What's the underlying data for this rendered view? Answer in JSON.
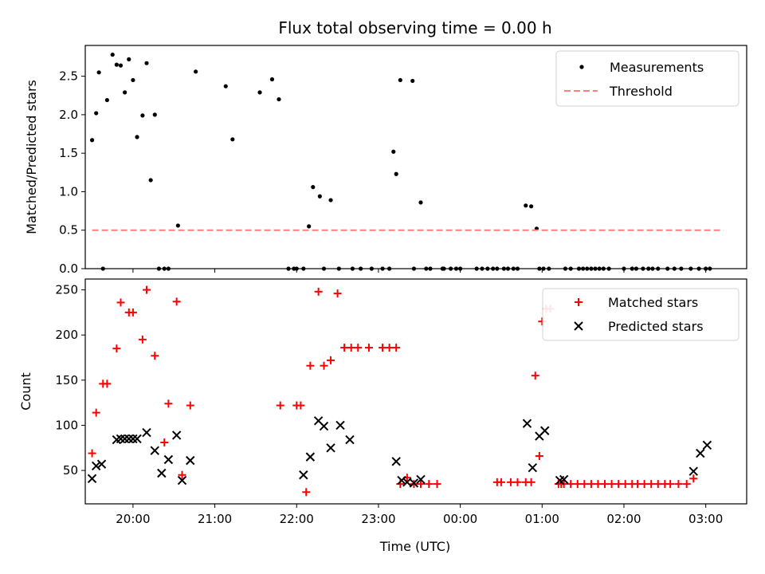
{
  "chart_data": [
    {
      "type": "scatter",
      "title": "Flux total observing time = 0.00 h",
      "xlabel": "",
      "ylabel": "Matched/Predicted stars",
      "xlim": [
        "19:25",
        "03:30"
      ],
      "ylim": [
        0,
        2.9
      ],
      "yticks": [
        0.0,
        0.5,
        1.0,
        1.5,
        2.0,
        2.5
      ],
      "ytick_labels": [
        "0.0",
        "0.5",
        "1.0",
        "1.5",
        "2.0",
        "2.5"
      ],
      "xticks": [
        "20:00",
        "21:00",
        "22:00",
        "23:00",
        "00:00",
        "01:00",
        "02:00",
        "03:00"
      ],
      "xtick_labels_visible": false,
      "legend_position": "top-right",
      "series": [
        {
          "name": "Measurements",
          "marker": "dot",
          "color": "#000000",
          "x": [
            "19:30",
            "19:33",
            "19:35",
            "19:38",
            "19:41",
            "19:45",
            "19:48",
            "19:51",
            "19:54",
            "19:57",
            "20:00",
            "20:03",
            "20:07",
            "20:10",
            "20:13",
            "20:16",
            "20:19",
            "20:23",
            "20:26",
            "20:33",
            "20:46",
            "21:08",
            "21:13",
            "21:33",
            "21:42",
            "21:47",
            "21:54",
            "21:58",
            "22:00",
            "22:05",
            "22:09",
            "22:12",
            "22:17",
            "22:20",
            "22:25",
            "22:31",
            "22:41",
            "22:47",
            "22:55",
            "23:03",
            "23:08",
            "23:11",
            "23:13",
            "23:16",
            "23:25",
            "23:26",
            "23:31",
            "23:35",
            "23:38",
            "23:47",
            "23:48",
            "23:53",
            "23:57",
            "00:00",
            "00:12",
            "00:16",
            "00:20",
            "00:24",
            "00:27",
            "00:32",
            "00:35",
            "00:39",
            "00:42",
            "00:48",
            "00:52",
            "00:56",
            "00:58",
            "01:01",
            "01:05",
            "01:17",
            "01:21",
            "01:27",
            "01:30",
            "01:33",
            "01:36",
            "01:39",
            "01:42",
            "01:45",
            "01:49",
            "02:00",
            "02:06",
            "02:09",
            "02:14",
            "02:18",
            "02:21",
            "02:25",
            "02:32",
            "02:37",
            "02:42",
            "02:49",
            "02:55",
            "03:00",
            "03:03"
          ],
          "y": [
            1.67,
            2.02,
            2.55,
            0.0,
            2.19,
            2.78,
            2.65,
            2.64,
            2.29,
            2.72,
            2.45,
            1.71,
            1.99,
            2.67,
            1.15,
            2.0,
            0.0,
            0.0,
            0.0,
            0.56,
            2.56,
            2.37,
            1.68,
            2.29,
            2.46,
            2.2,
            0.0,
            0.0,
            0.0,
            0.0,
            0.55,
            1.06,
            0.94,
            0.0,
            0.89,
            0.0,
            0.0,
            0.0,
            0.0,
            0.0,
            0.0,
            1.52,
            1.23,
            2.45,
            2.44,
            0.0,
            0.86,
            0.0,
            0.0,
            0.0,
            0.0,
            0.0,
            0.0,
            0.0,
            0.0,
            0.0,
            0.0,
            0.0,
            0.0,
            0.0,
            0.0,
            0.0,
            0.0,
            0.82,
            0.81,
            0.52,
            0.0,
            0.0,
            0.0,
            0.0,
            0.0,
            0.0,
            0.0,
            0.0,
            0.0,
            0.0,
            0.0,
            0.0,
            0.0,
            0.0,
            0.0,
            0.0,
            0.0,
            0.0,
            0.0,
            0.0,
            0.0,
            0.0,
            0.0,
            0.0,
            0.0,
            0.0,
            0.0
          ]
        },
        {
          "name": "Threshold",
          "marker": "dashed-line",
          "color": "#ff7f7f",
          "x": [
            "19:30",
            "03:13"
          ],
          "y": [
            0.5,
            0.5
          ]
        }
      ]
    },
    {
      "type": "scatter",
      "title": "",
      "xlabel": "Time (UTC)",
      "ylabel": "Count",
      "xlim": [
        "19:25",
        "03:30"
      ],
      "ylim": [
        13,
        262
      ],
      "yticks": [
        50,
        100,
        150,
        200,
        250
      ],
      "ytick_labels": [
        "50",
        "100",
        "150",
        "200",
        "250"
      ],
      "xticks": [
        "20:00",
        "21:00",
        "22:00",
        "23:00",
        "00:00",
        "01:00",
        "02:00",
        "03:00"
      ],
      "xtick_labels": [
        "20:00",
        "21:00",
        "22:00",
        "23:00",
        "00:00",
        "01:00",
        "02:00",
        "03:00"
      ],
      "legend_position": "top-right",
      "series": [
        {
          "name": "Matched stars",
          "marker": "plus",
          "color": "#ff0000",
          "x": [
            "19:30",
            "19:33",
            "19:38",
            "19:41",
            "19:48",
            "19:51",
            "19:57",
            "19:60",
            "20:07",
            "20:10",
            "20:16",
            "20:23",
            "20:26",
            "20:32",
            "20:36",
            "20:42",
            "21:48",
            "22:00",
            "22:03",
            "22:07",
            "22:10",
            "22:16",
            "22:20",
            "22:25",
            "22:30",
            "22:35",
            "22:40",
            "22:45",
            "22:53",
            "23:03",
            "23:08",
            "23:13",
            "23:16",
            "23:21",
            "23:26",
            "23:31",
            "23:37",
            "23:43",
            "00:27",
            "00:30",
            "00:37",
            "00:42",
            "00:48",
            "00:52",
            "00:55",
            "00:58",
            "01:00",
            "01:03",
            "01:06",
            "01:12",
            "01:14",
            "01:16",
            "01:21",
            "01:26",
            "01:31",
            "01:36",
            "01:41",
            "01:46",
            "01:51",
            "01:56",
            "02:01",
            "02:06",
            "02:10",
            "02:15",
            "02:20",
            "02:25",
            "02:30",
            "02:34",
            "02:40",
            "02:46",
            "02:51"
          ],
          "y": [
            69,
            114,
            146,
            146,
            185,
            236,
            225,
            225,
            195,
            250,
            177,
            81,
            124,
            237,
            45,
            122,
            122,
            122,
            122,
            26,
            166,
            248,
            166,
            172,
            246,
            186,
            186,
            186,
            186,
            186,
            186,
            186,
            35,
            42,
            35,
            35,
            35,
            35,
            37,
            37,
            37,
            37,
            37,
            37,
            155,
            66,
            215,
            229,
            229,
            35,
            35,
            35,
            35,
            35,
            35,
            35,
            35,
            35,
            35,
            35,
            35,
            35,
            35,
            35,
            35,
            35,
            35,
            35,
            35,
            35,
            41
          ]
        },
        {
          "name": "Predicted stars",
          "marker": "x",
          "color": "#000000",
          "x": [
            "19:30",
            "19:33",
            "19:37",
            "19:48",
            "19:51",
            "19:54",
            "19:57",
            "20:00",
            "20:03",
            "20:10",
            "20:16",
            "20:21",
            "20:26",
            "20:32",
            "20:36",
            "20:42",
            "22:05",
            "22:10",
            "22:16",
            "22:20",
            "22:25",
            "22:32",
            "22:39",
            "23:13",
            "23:17",
            "23:21",
            "23:26",
            "23:31",
            "00:49",
            "00:53",
            "00:58",
            "01:02",
            "01:13",
            "01:16",
            "02:51",
            "02:56",
            "03:01"
          ],
          "y": [
            41,
            55,
            57,
            84,
            85,
            85,
            85,
            85,
            85,
            92,
            72,
            47,
            62,
            89,
            39,
            61,
            45,
            65,
            105,
            99,
            75,
            100,
            84,
            60,
            39,
            37,
            36,
            40,
            102,
            53,
            88,
            94,
            39,
            40,
            49,
            69,
            78
          ]
        }
      ]
    }
  ]
}
